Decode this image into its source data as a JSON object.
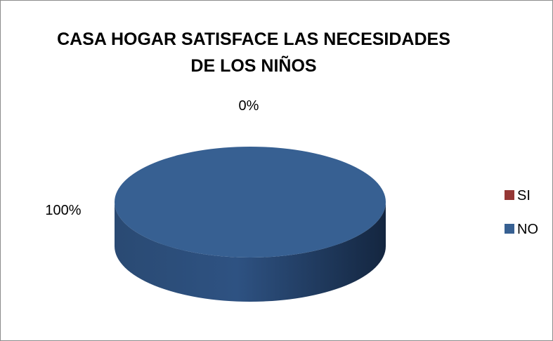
{
  "chart_data": {
    "type": "pie",
    "title": "CASA HOGAR SATISFACE LAS NECESIDADES DE LOS NIÑOS",
    "categories": [
      "SI",
      "NO"
    ],
    "values": [
      0,
      100
    ],
    "data_labels": [
      "0%",
      "100%"
    ],
    "colors": [
      "#953735",
      "#376092"
    ],
    "legend_position": "right",
    "style": "3d"
  }
}
